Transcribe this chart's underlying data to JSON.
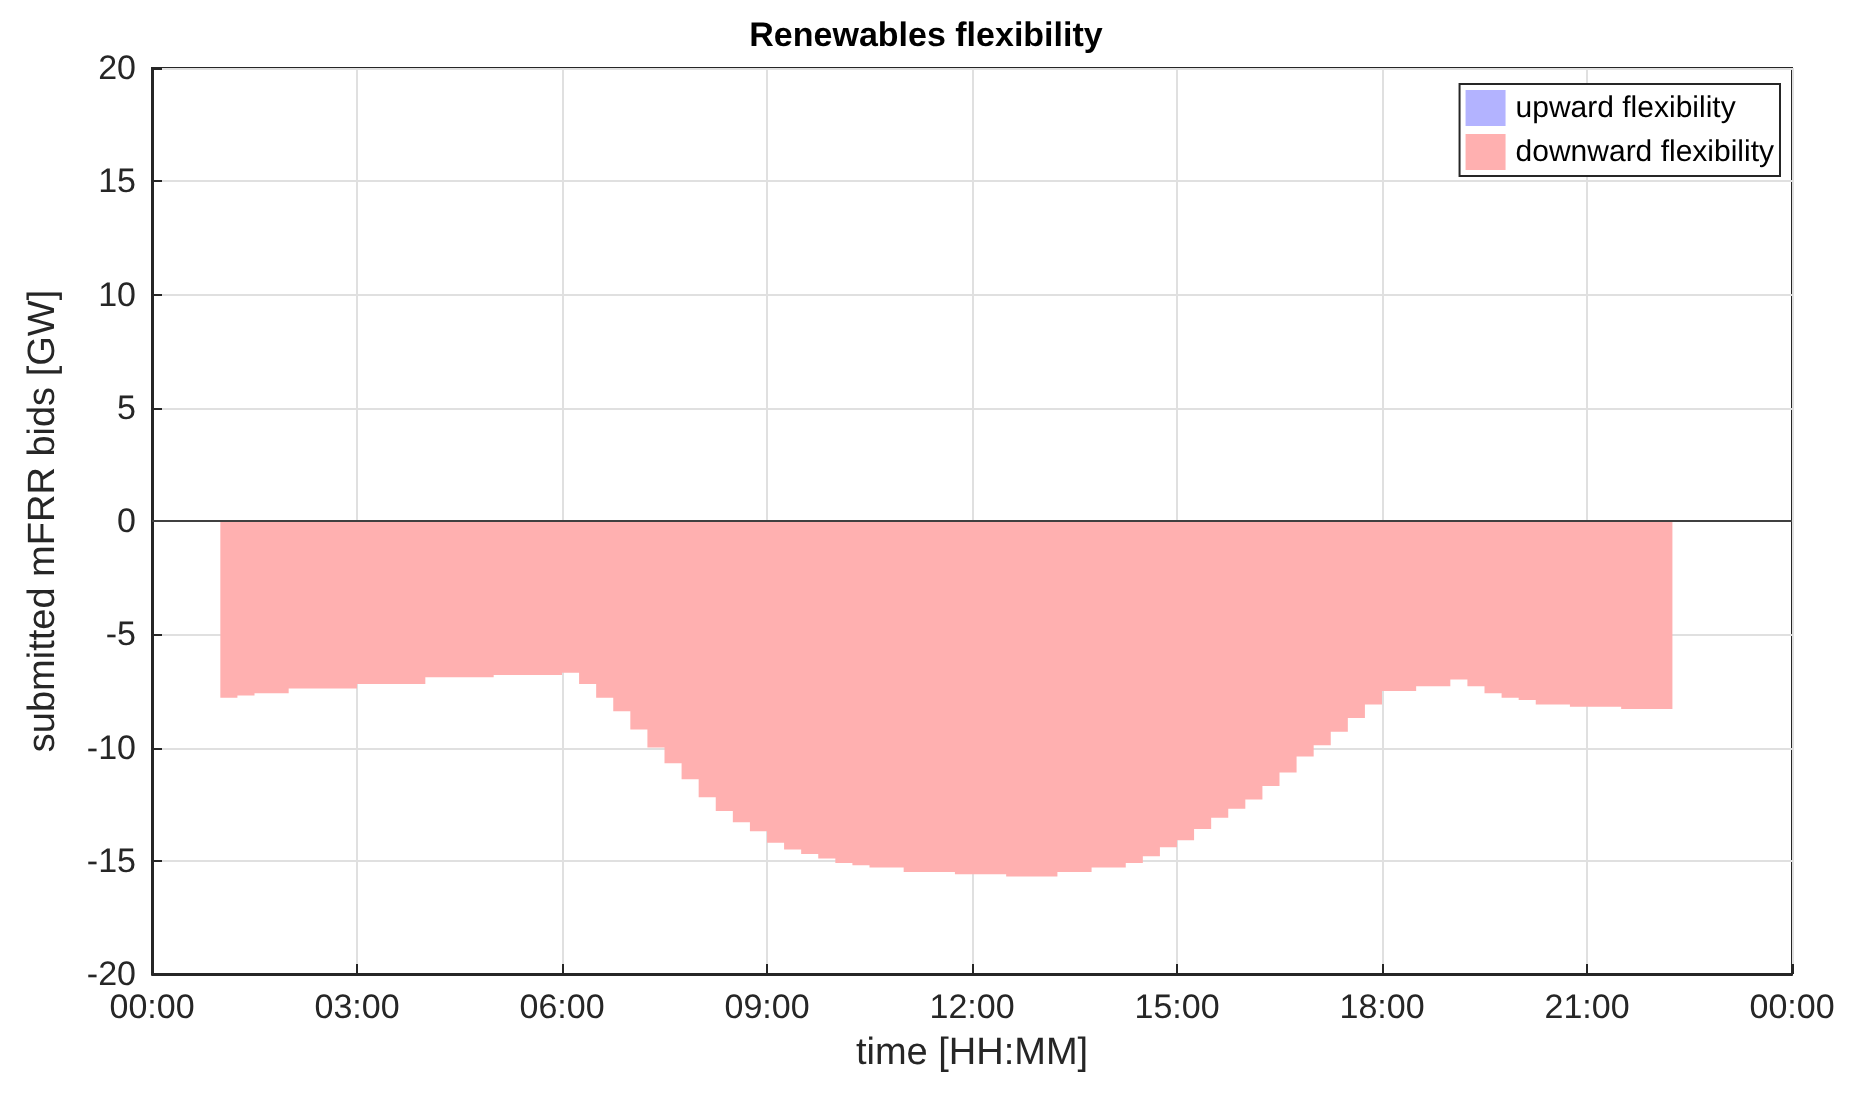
{
  "chart_data": {
    "type": "area",
    "title": "Renewables flexibility",
    "xlabel": "time [HH:MM]",
    "ylabel": "submitted mFRR bids [GW]",
    "series": [
      {
        "name": "upward flexibility",
        "color": "#b3b3ff"
      },
      {
        "name": "downward flexibility",
        "color": "#ffb0b0",
        "x": [
          1,
          1.25,
          1.5,
          2,
          3,
          4,
          5,
          6,
          6.25,
          6.5,
          6.75,
          7,
          7.25,
          7.5,
          7.75,
          8,
          8.25,
          8.5,
          8.75,
          9,
          9.25,
          9.5,
          9.75,
          10,
          10.25,
          10.5,
          11,
          11.75,
          12.5,
          13.25,
          13.75,
          14.25,
          14.5,
          14.75,
          15,
          15.25,
          15.5,
          15.75,
          16,
          16.25,
          16.5,
          16.75,
          17,
          17.25,
          17.5,
          17.75,
          18,
          18.5,
          19,
          19.25,
          19.5,
          19.75,
          20,
          20.25,
          20.75,
          21.5,
          22.25
        ],
        "values": [
          -7.8,
          -7.7,
          -7.6,
          -7.4,
          -7.2,
          -6.9,
          -6.8,
          -6.7,
          -7.2,
          -7.8,
          -8.4,
          -9.2,
          -10,
          -10.7,
          -11.4,
          -12.2,
          -12.8,
          -13.3,
          -13.7,
          -14.2,
          -14.5,
          -14.7,
          -14.9,
          -15.1,
          -15.2,
          -15.3,
          -15.5,
          -15.6,
          -15.7,
          -15.5,
          -15.3,
          -15.1,
          -14.8,
          -14.4,
          -14.1,
          -13.6,
          -13.1,
          -12.7,
          -12.3,
          -11.7,
          -11.1,
          -10.4,
          -9.9,
          -9.3,
          -8.7,
          -8.1,
          -7.5,
          -7.3,
          -7,
          -7.3,
          -7.6,
          -7.8,
          -7.9,
          -8.1,
          -8.2,
          -8.3,
          -8.4
        ]
      }
    ],
    "xlim": [
      0,
      24
    ],
    "xticks": [
      {
        "value": 0,
        "label": "00:00"
      },
      {
        "value": 3,
        "label": "03:00"
      },
      {
        "value": 6,
        "label": "06:00"
      },
      {
        "value": 9,
        "label": "09:00"
      },
      {
        "value": 12,
        "label": "12:00"
      },
      {
        "value": 15,
        "label": "15:00"
      },
      {
        "value": 18,
        "label": "18:00"
      },
      {
        "value": 21,
        "label": "21:00"
      },
      {
        "value": 24,
        "label": "00:00"
      }
    ],
    "ylim": [
      -20,
      20
    ],
    "yticks": [
      -20,
      -15,
      -10,
      -5,
      0,
      5,
      10,
      15,
      20
    ],
    "ref_lines": [
      {
        "axis": "y",
        "value": 0,
        "color": "#404040"
      }
    ],
    "grid": true,
    "legend": "top right"
  }
}
